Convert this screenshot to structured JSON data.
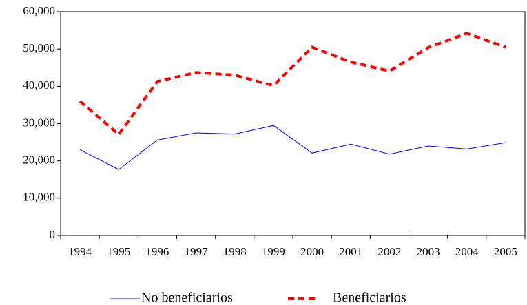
{
  "chart_data": {
    "type": "line",
    "categories": [
      "1994",
      "1995",
      "1996",
      "1997",
      "1998",
      "1999",
      "2000",
      "2001",
      "2002",
      "2003",
      "2004",
      "2005"
    ],
    "series": [
      {
        "name": "No beneficiarios",
        "color": "#0000ff",
        "values": [
          23000,
          17700,
          25600,
          27500,
          27200,
          29500,
          22100,
          24500,
          21800,
          24000,
          23200,
          24900
        ]
      },
      {
        "name": "Beneficiarios",
        "color": "#ff0000",
        "values": [
          36000,
          27100,
          41300,
          43700,
          43000,
          40200,
          50500,
          46500,
          44100,
          50400,
          54200,
          50500
        ]
      }
    ],
    "ylim": [
      0,
      60000
    ],
    "yticks": [
      0,
      {
        "value": 10000,
        "label": "10,000"
      },
      {
        "value": 20000,
        "label": "20,000"
      },
      {
        "value": 30000,
        "label": "30,000"
      },
      {
        "value": 40000,
        "label": "40,000"
      },
      {
        "value": 50000,
        "label": "50,000"
      },
      {
        "value": 60000,
        "label": "60,000"
      }
    ],
    "grid": false
  }
}
